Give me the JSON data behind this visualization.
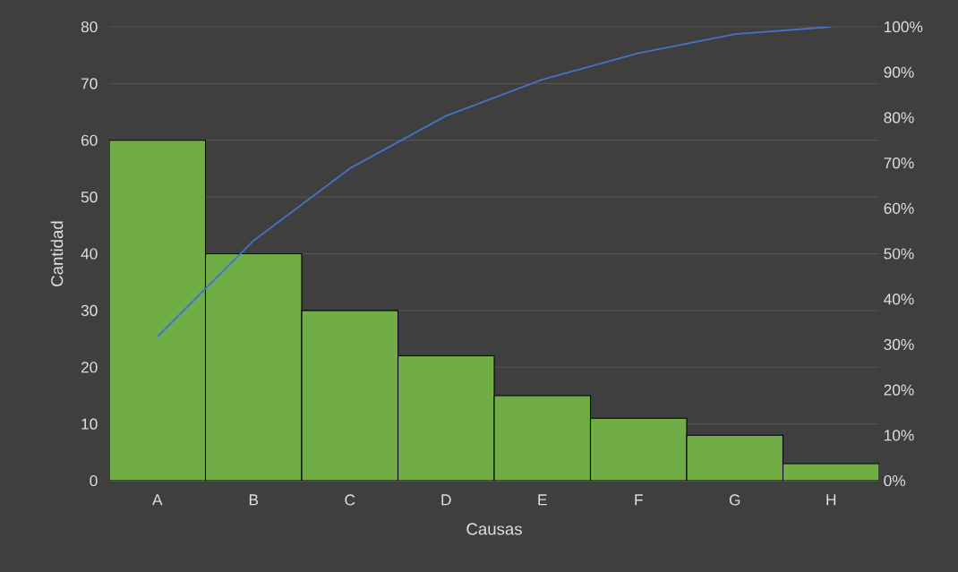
{
  "chart_data": {
    "type": "bar",
    "xlabel": "Causas",
    "ylabel": "Cantidad",
    "categories": [
      "A",
      "B",
      "C",
      "D",
      "E",
      "F",
      "G",
      "H"
    ],
    "series": [
      {
        "color": "#70ad47",
        "values": [
          60,
          40,
          30,
          22,
          15,
          11,
          8,
          3
        ]
      },
      {
        "type": "line",
        "axis": "y2",
        "color": "#4472c4",
        "values": [
          31.7,
          52.9,
          68.8,
          80.4,
          88.4,
          94.2,
          98.4,
          100
        ]
      }
    ],
    "ylim": [
      0,
      80
    ],
    "yticks": [
      0,
      10,
      20,
      30,
      40,
      50,
      60,
      70,
      80
    ],
    "y2lim": [
      0,
      100
    ],
    "y2ticks": [
      {
        "value": 0,
        "label": "0%"
      },
      {
        "value": 10,
        "label": "10%"
      },
      {
        "value": 20,
        "label": "20%"
      },
      {
        "value": 30,
        "label": "30%"
      },
      {
        "value": 40,
        "label": "40%"
      },
      {
        "value": 50,
        "label": "50%"
      },
      {
        "value": 60,
        "label": "60%"
      },
      {
        "value": 70,
        "label": "70%"
      },
      {
        "value": 80,
        "label": "80%"
      },
      {
        "value": 90,
        "label": "90%"
      },
      {
        "value": 100,
        "label": "100%"
      }
    ],
    "grid": "y"
  }
}
